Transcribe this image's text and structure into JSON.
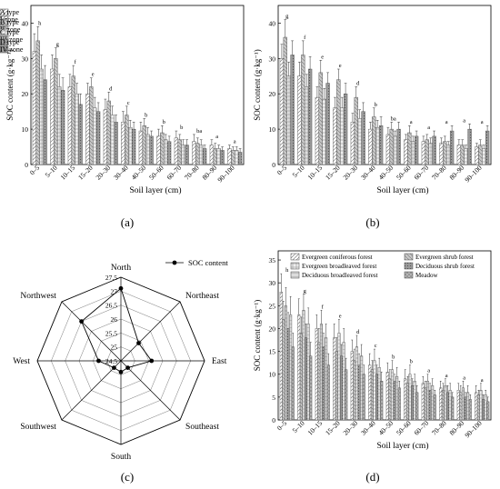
{
  "figure": {
    "panel_labels": [
      "(a)",
      "(b)",
      "(c)",
      "(d)"
    ]
  },
  "chart_data": [
    {
      "panel": "(a)",
      "type": "bar",
      "xlabel": "Soil layer (cm)",
      "ylabel": "SOC content (g·kg⁻¹)",
      "ylim": [
        0,
        45
      ],
      "yticks": [
        0,
        10,
        20,
        30,
        40
      ],
      "legend_position": "top-right",
      "categories": [
        "0–5",
        "5–10",
        "10–15",
        "15–20",
        "20–30",
        "30–40",
        "40–50",
        "50–60",
        "60–70",
        "70–80",
        "80–90",
        "90–100"
      ],
      "series": [
        {
          "name": "I zone",
          "values": [
            32,
            27,
            22,
            20,
            15.5,
            12,
            9.5,
            8,
            7.5,
            6.5,
            5.5,
            4.5
          ],
          "errors": [
            5,
            4,
            3.5,
            3,
            3,
            3,
            2.5,
            2,
            2,
            2,
            1.5,
            1
          ]
        },
        {
          "name": "II zone",
          "values": [
            35,
            30,
            25,
            22,
            18,
            14,
            11,
            9,
            7,
            6,
            4.5,
            4
          ],
          "errors": [
            4,
            3,
            3,
            2.5,
            2.5,
            2.5,
            2,
            2,
            1.5,
            1.5,
            1.5,
            1
          ]
        },
        {
          "name": "III zone",
          "values": [
            27,
            22,
            20,
            16,
            14,
            10.5,
            8.5,
            7,
            5.5,
            5.5,
            4.5,
            4
          ],
          "errors": [
            4,
            3.5,
            3,
            3,
            2.5,
            2,
            2,
            1.5,
            1.5,
            1.5,
            1,
            1
          ]
        },
        {
          "name": "IV zone",
          "values": [
            24,
            21,
            17,
            15,
            12,
            10,
            8,
            6.5,
            5.5,
            4.5,
            4,
            3.5
          ],
          "errors": [
            4,
            3.5,
            3,
            2.5,
            2,
            2,
            1.5,
            1.5,
            1.5,
            1,
            1,
            1
          ]
        }
      ],
      "significance_letters": [
        "h",
        "g",
        "f",
        "e",
        "d",
        "c",
        "b",
        "b",
        "b",
        "ba",
        "a",
        "a"
      ]
    },
    {
      "panel": "(b)",
      "type": "bar",
      "xlabel": "Soil layer (cm)",
      "ylabel": "SOC content (g·kg⁻¹)",
      "ylim": [
        0,
        45
      ],
      "yticks": [
        0,
        10,
        20,
        30,
        40
      ],
      "legend_position": "top-right",
      "categories": [
        "0–5",
        "5–10",
        "10–15",
        "15–20",
        "20–30",
        "30–40",
        "40–50",
        "50–60",
        "60–70",
        "70–80",
        "80–90",
        "90–100"
      ],
      "series": [
        {
          "name": "A type",
          "values": [
            30,
            25,
            19,
            16,
            12,
            10,
            8.5,
            7,
            6.5,
            6,
            5.5,
            5
          ],
          "errors": [
            4,
            4,
            3,
            3,
            2.5,
            2,
            2,
            1.5,
            1.5,
            1.5,
            1.5,
            1
          ]
        },
        {
          "name": "B type",
          "values": [
            36,
            31,
            26,
            24,
            19,
            13.5,
            10,
            9,
            7,
            6.5,
            5.5,
            5.5
          ],
          "errors": [
            5,
            4,
            3.5,
            3,
            3,
            2.5,
            2,
            2,
            1.5,
            1.5,
            1.5,
            1.5
          ]
        },
        {
          "name": "C type",
          "values": [
            25,
            22,
            18.5,
            16,
            13,
            10.5,
            8,
            6.5,
            6,
            5.5,
            4.5,
            4.5
          ],
          "errors": [
            4,
            3.5,
            3,
            3,
            2.5,
            2,
            1.5,
            1.5,
            1.5,
            1,
            1,
            1
          ]
        },
        {
          "name": "D type",
          "values": [
            31,
            27,
            23,
            20,
            15,
            11,
            10,
            8,
            8,
            9.5,
            10,
            9.5
          ],
          "errors": [
            4,
            3.5,
            3,
            3,
            2.5,
            2.5,
            2,
            1.5,
            1.5,
            1.5,
            1.5,
            1.5
          ]
        }
      ],
      "significance_letters": [
        "g",
        "f",
        "e",
        "e",
        "d",
        "b",
        "ba",
        "a",
        "a",
        "a",
        "a",
        "a"
      ]
    },
    {
      "panel": "(c)",
      "type": "radar",
      "legend_position": "top-right",
      "axes": [
        "North",
        "Northeast",
        "East",
        "Southeast",
        "South",
        "Southwest",
        "West",
        "Northwest"
      ],
      "rlim": [
        24.5,
        27.5
      ],
      "rticks": [
        24.5,
        25,
        25.5,
        26,
        26.5,
        27,
        27.5
      ],
      "series": [
        {
          "name": "SOC content",
          "values": [
            27.1,
            25.4,
            25.6,
            24.85,
            24.9,
            24.85,
            25.3,
            26.5
          ]
        }
      ]
    },
    {
      "panel": "(d)",
      "type": "bar",
      "xlabel": "Soil layer (cm)",
      "ylabel": "SOC content (g·kg⁻¹)",
      "ylim": [
        0,
        37
      ],
      "yticks": [
        0,
        5,
        10,
        15,
        20,
        25,
        30,
        35
      ],
      "legend_position": "top",
      "categories": [
        "0–5",
        "5–10",
        "10–15",
        "15–20",
        "20–30",
        "30–40",
        "40–50",
        "50–60",
        "60–70",
        "70–80",
        "80–90",
        "90–100"
      ],
      "series": [
        {
          "name": "Evergreen coniferous forest",
          "values": [
            28,
            23,
            20,
            18,
            15,
            12,
            10.5,
            9,
            8,
            7,
            6.5,
            6
          ],
          "errors": [
            4,
            3.5,
            3,
            3,
            2.5,
            2.5,
            2,
            2,
            1.5,
            1.5,
            1.5,
            1.5
          ]
        },
        {
          "name": "Evergreen shrub forest",
          "values": [
            22,
            19,
            17,
            15,
            13,
            11,
            9,
            8,
            7,
            6.5,
            6,
            5.5
          ],
          "errors": [
            4,
            3.5,
            3,
            3,
            2.5,
            2,
            2,
            1.5,
            1.5,
            1.5,
            1.5,
            1
          ]
        },
        {
          "name": "Evergreen broadleaved forest",
          "values": [
            25,
            24,
            21,
            19,
            16,
            13,
            11,
            10,
            8.5,
            7.5,
            7,
            6.5
          ],
          "errors": [
            4,
            3.5,
            3,
            3,
            2.5,
            2.5,
            2,
            2,
            1.5,
            1.5,
            1.5,
            1.5
          ]
        },
        {
          "name": "Deciduous shrub forest",
          "values": [
            20,
            18,
            16,
            14,
            12,
            10,
            8.5,
            7.5,
            6.5,
            6,
            5,
            4.5
          ],
          "errors": [
            3.5,
            3,
            3,
            2.5,
            2.5,
            2,
            1.5,
            1.5,
            1.5,
            1.5,
            1,
            1
          ]
        },
        {
          "name": "Deciduous broadleaved forest",
          "values": [
            23,
            21,
            18,
            17,
            14,
            11.5,
            9.5,
            8.5,
            7.5,
            6.5,
            6,
            5.5
          ],
          "errors": [
            4,
            3.5,
            3,
            3,
            2.5,
            2,
            2,
            1.5,
            1.5,
            1.5,
            1.5,
            1
          ]
        },
        {
          "name": "Meadow",
          "values": [
            16,
            14,
            12,
            11,
            10,
            8.5,
            7,
            6,
            5.5,
            5,
            4.5,
            4
          ],
          "errors": [
            3,
            3,
            2.5,
            2.5,
            2,
            2,
            1.5,
            1.5,
            1,
            1,
            1,
            1
          ]
        }
      ],
      "significance_letters": [
        "h",
        "g",
        "f",
        "e",
        "d",
        "c",
        "b",
        "b",
        "a",
        "a",
        "a",
        "a"
      ]
    }
  ]
}
